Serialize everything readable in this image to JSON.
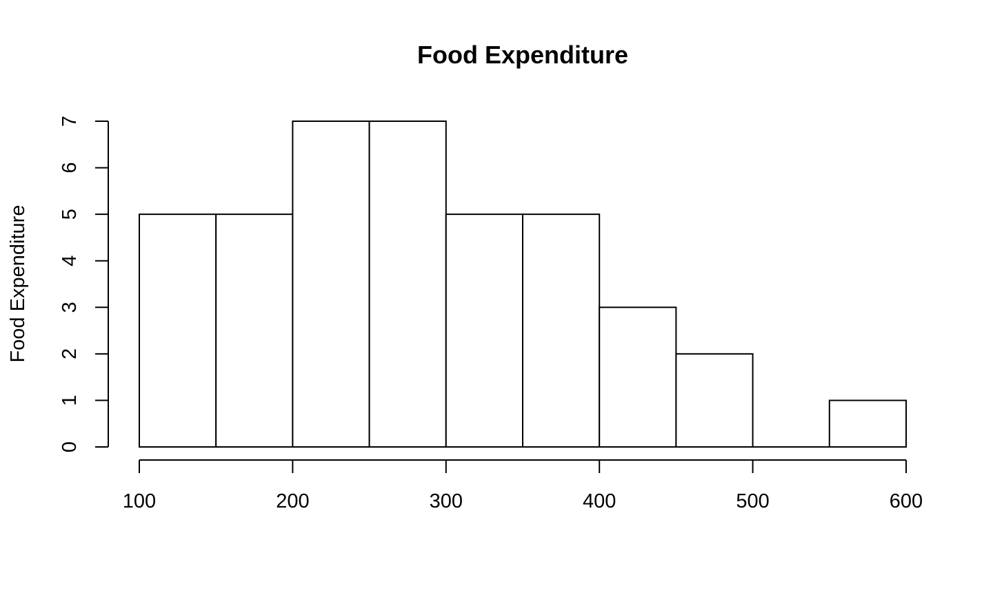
{
  "chart_data": {
    "type": "bar",
    "title": "Food Expenditure",
    "xlabel": "",
    "ylabel": "Food Expenditure",
    "bins": [
      {
        "x0": 100,
        "x1": 150,
        "count": 5
      },
      {
        "x0": 150,
        "x1": 200,
        "count": 5
      },
      {
        "x0": 200,
        "x1": 250,
        "count": 7
      },
      {
        "x0": 250,
        "x1": 300,
        "count": 7
      },
      {
        "x0": 300,
        "x1": 350,
        "count": 5
      },
      {
        "x0": 350,
        "x1": 400,
        "count": 5
      },
      {
        "x0": 400,
        "x1": 450,
        "count": 3
      },
      {
        "x0": 450,
        "x1": 500,
        "count": 2
      },
      {
        "x0": 500,
        "x1": 550,
        "count": 0
      },
      {
        "x0": 550,
        "x1": 600,
        "count": 1
      }
    ],
    "xlim": [
      100,
      600
    ],
    "ylim": [
      0,
      7
    ],
    "xticks": [
      100,
      200,
      300,
      400,
      500,
      600
    ],
    "yticks": [
      0,
      1,
      2,
      3,
      4,
      5,
      6,
      7
    ],
    "grid": false,
    "colors": {
      "bar_fill": "#ffffff",
      "bar_stroke": "#000000"
    }
  }
}
